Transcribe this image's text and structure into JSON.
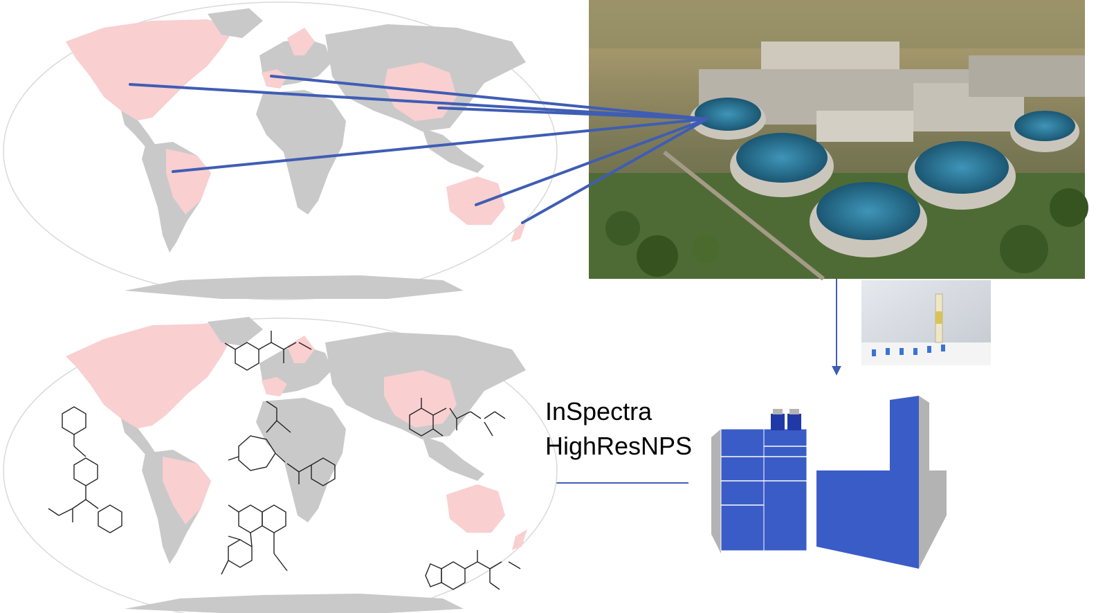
{
  "diagram": {
    "software_line_1": "InSpectra",
    "software_line_2": "HighResNPS"
  },
  "colors": {
    "land": "#c9c9c9",
    "highlight_country": "#f9cfd0",
    "ocean_outline": "#d9d9d9",
    "arrow": "#3f5db4",
    "instrument_blue": "#3a5cc7",
    "instrument_grey": "#b3b3b3",
    "molecule_stroke": "#222222"
  },
  "icons": {
    "plant": "wastewater-treatment-plant-photo",
    "spe": "solid-phase-extraction-photo",
    "instrument": "lc-hrms-instrument-icon"
  }
}
